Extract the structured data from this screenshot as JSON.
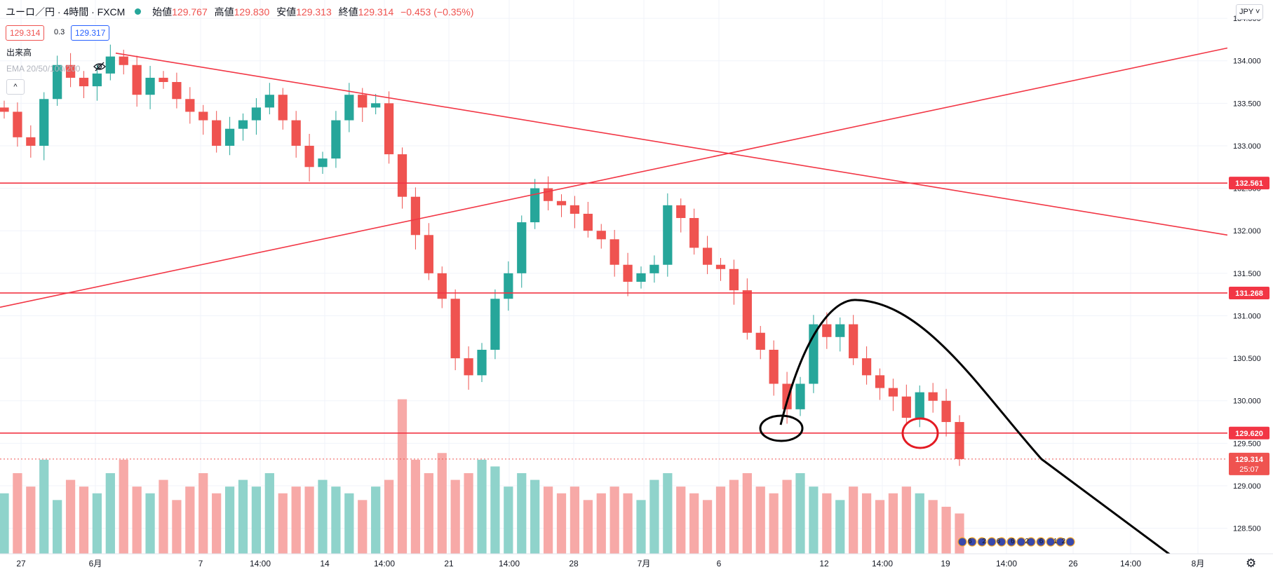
{
  "legend": {
    "title": "ユーロ／円 · 4時間 · FXCM",
    "open_label": "始値",
    "open": "129.767",
    "high_label": "高値",
    "high": "129.830",
    "low_label": "安値",
    "low": "129.313",
    "close_label": "終値",
    "close": "129.314",
    "change": "−0.453 (−0.35%)"
  },
  "quote": {
    "bid": "129.314",
    "spread": "0.3",
    "ask": "129.317"
  },
  "indicators": {
    "volume": "出来高",
    "ema": "EMA 20/50/100/200"
  },
  "toolbar": {
    "collapse_glyph": "^",
    "currency": "JPY ˅",
    "settings_glyph": "⚙"
  },
  "colors": {
    "up": "#26a69a",
    "down": "#ef5350",
    "volume_up": "#8fd3cb",
    "volume_down": "#f7a9a7",
    "line": "#f23645",
    "text": "#131722"
  },
  "chart_data": {
    "type": "candlestick",
    "symbol": "ユーロ／円",
    "timeframe": "4時間",
    "y_range": [
      128.2,
      134.55
    ],
    "y_ticks": [
      "134.500",
      "134.000",
      "133.500",
      "133.000",
      "132.500",
      "132.000",
      "131.500",
      "131.000",
      "130.500",
      "130.000",
      "129.500",
      "129.000",
      "128.500"
    ],
    "x_ticks": [
      "27",
      "6月",
      "7",
      "14:00",
      "14",
      "14:00",
      "21",
      "14:00",
      "28",
      "7月",
      "6",
      "12",
      "14:00",
      "19",
      "14:00",
      "26",
      "14:00",
      "8月"
    ],
    "price_labels": [
      {
        "value": "132.561",
        "price": 132.561
      },
      {
        "value": "131.268",
        "price": 131.268
      },
      {
        "value": "129.620",
        "price": 129.62
      }
    ],
    "current_price": {
      "value": "129.314",
      "price": 129.314,
      "countdown": "25:07"
    },
    "horizontal_lines": [
      132.561,
      131.268,
      129.62
    ],
    "trend_lines": [
      {
        "start_date": "6月",
        "start_price": 134.09,
        "end_date": "8月",
        "end_price": 131.95
      },
      {
        "start_date": "27",
        "start_price": 131.1,
        "end_date": "8月",
        "end_price": 134.15
      }
    ],
    "close_path": [
      133.4,
      133.1,
      133.0,
      133.55,
      133.95,
      133.8,
      133.7,
      133.85,
      134.05,
      133.95,
      133.6,
      133.8,
      133.75,
      133.55,
      133.4,
      133.3,
      133.0,
      133.2,
      133.3,
      133.45,
      133.6,
      133.3,
      133.0,
      132.75,
      132.85,
      133.3,
      133.6,
      133.45,
      133.5,
      132.9,
      132.4,
      131.95,
      131.5,
      131.2,
      130.5,
      130.3,
      130.6,
      131.2,
      131.5,
      132.1,
      132.5,
      132.35,
      132.3,
      132.2,
      132.0,
      131.9,
      131.6,
      131.4,
      131.5,
      131.6,
      132.3,
      132.15,
      131.8,
      131.6,
      131.55,
      131.3,
      130.8,
      130.6,
      130.2,
      129.9,
      130.2,
      130.9,
      130.75,
      130.9,
      130.5,
      130.3,
      130.15,
      130.05,
      129.8,
      130.1,
      130.0,
      129.75,
      129.314
    ],
    "volume_range": [
      0,
      1.2
    ],
    "volume_path": [
      0.45,
      0.6,
      0.5,
      0.7,
      0.4,
      0.55,
      0.5,
      0.45,
      0.6,
      0.7,
      0.5,
      0.45,
      0.55,
      0.4,
      0.5,
      0.6,
      0.45,
      0.5,
      0.55,
      0.5,
      0.6,
      0.45,
      0.5,
      0.5,
      0.55,
      0.5,
      0.45,
      0.4,
      0.5,
      0.55,
      1.15,
      0.7,
      0.6,
      0.75,
      0.55,
      0.6,
      0.7,
      0.65,
      0.5,
      0.6,
      0.55,
      0.5,
      0.45,
      0.5,
      0.4,
      0.45,
      0.5,
      0.45,
      0.4,
      0.55,
      0.6,
      0.5,
      0.45,
      0.4,
      0.5,
      0.55,
      0.6,
      0.5,
      0.45,
      0.55,
      0.6,
      0.5,
      0.45,
      0.4,
      0.5,
      0.45,
      0.4,
      0.45,
      0.5,
      0.45,
      0.4,
      0.35,
      0.3
    ]
  },
  "annotations": {
    "events_label": "6 2 6 6 2 6 12"
  }
}
